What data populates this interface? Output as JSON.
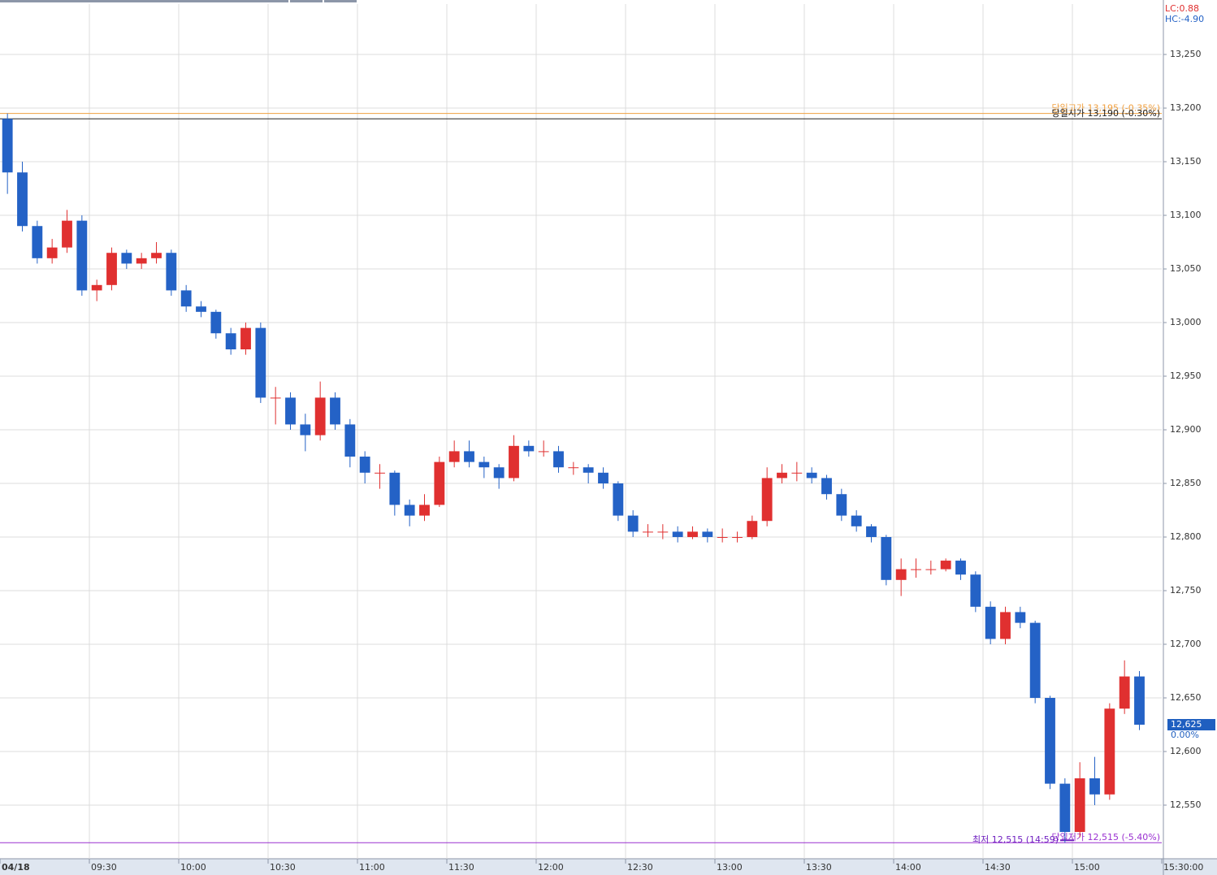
{
  "chart_data": {
    "type": "candlestick",
    "xlim": [
      0,
      390
    ],
    "ylim": [
      12500,
      13297
    ],
    "xticks": [
      {
        "value": 0,
        "label": "04/18"
      },
      {
        "value": 30,
        "label": "09:30"
      },
      {
        "value": 60,
        "label": "10:00"
      },
      {
        "value": 90,
        "label": "10:30"
      },
      {
        "value": 120,
        "label": "11:00"
      },
      {
        "value": 150,
        "label": "11:30"
      },
      {
        "value": 180,
        "label": "12:00"
      },
      {
        "value": 210,
        "label": "12:30"
      },
      {
        "value": 240,
        "label": "13:00"
      },
      {
        "value": 270,
        "label": "13:30"
      },
      {
        "value": 300,
        "label": "14:00"
      },
      {
        "value": 330,
        "label": "14:30"
      },
      {
        "value": 360,
        "label": "15:00"
      },
      {
        "value": 390,
        "label": "15:30:00"
      }
    ],
    "yticks": [
      {
        "value": 12550,
        "label": "12,550"
      },
      {
        "value": 12600,
        "label": "12,600"
      },
      {
        "value": 12650,
        "label": "12,650"
      },
      {
        "value": 12700,
        "label": "12,700"
      },
      {
        "value": 12750,
        "label": "12,750"
      },
      {
        "value": 12800,
        "label": "12,800"
      },
      {
        "value": 12850,
        "label": "12,850"
      },
      {
        "value": 12900,
        "label": "12,900"
      },
      {
        "value": 12950,
        "label": "12,950"
      },
      {
        "value": 13000,
        "label": "13,000"
      },
      {
        "value": 13050,
        "label": "13,050"
      },
      {
        "value": 13100,
        "label": "13,100"
      },
      {
        "value": 13150,
        "label": "13,150"
      },
      {
        "value": 13200,
        "label": "13,200"
      },
      {
        "value": 13250,
        "label": "13,250"
      }
    ],
    "grid": true,
    "up_color": "#e03030",
    "down_color": "#2462c6",
    "lc": "LC:0.88",
    "hc": "HC:-4.90",
    "hlines": [
      {
        "value": 13195,
        "label": "당일고가 13,195 (-0.35%)",
        "color": "#f0a040"
      },
      {
        "value": 13190,
        "label": "당일시가 13,190 (-0.30%)",
        "color": "#202020"
      },
      {
        "value": 12515,
        "label": "당일저가 12,515 (-5.40%)",
        "color": "#9a30d0"
      }
    ],
    "low_note": "최저 12,515 (14:59)",
    "current": {
      "value": 12625,
      "label": "12,625",
      "change": "0.00%"
    },
    "x": [
      0,
      5,
      10,
      15,
      20,
      25,
      30,
      35,
      40,
      45,
      50,
      55,
      60,
      65,
      70,
      75,
      80,
      85,
      90,
      95,
      100,
      105,
      110,
      115,
      120,
      125,
      130,
      135,
      140,
      145,
      150,
      155,
      160,
      165,
      170,
      175,
      180,
      185,
      190,
      195,
      200,
      205,
      210,
      215,
      220,
      225,
      230,
      235,
      240,
      245,
      250,
      255,
      260,
      265,
      270,
      275,
      280,
      285,
      290,
      295,
      300,
      305,
      310,
      315,
      320,
      325,
      330,
      335,
      340,
      345,
      350,
      355,
      360,
      365,
      370,
      375,
      380
    ],
    "candles": [
      [
        13190,
        13195,
        13120,
        13140
      ],
      [
        13140,
        13150,
        13085,
        13090
      ],
      [
        13090,
        13095,
        13055,
        13060
      ],
      [
        13060,
        13078,
        13055,
        13070
      ],
      [
        13070,
        13105,
        13065,
        13095
      ],
      [
        13095,
        13100,
        13025,
        13030
      ],
      [
        13030,
        13040,
        13020,
        13035
      ],
      [
        13035,
        13070,
        13030,
        13065
      ],
      [
        13065,
        13068,
        13050,
        13055
      ],
      [
        13055,
        13065,
        13050,
        13060
      ],
      [
        13060,
        13075,
        13055,
        13065
      ],
      [
        13065,
        13068,
        13025,
        13030
      ],
      [
        13030,
        13035,
        13010,
        13015
      ],
      [
        13015,
        13020,
        13005,
        13010
      ],
      [
        13010,
        13012,
        12985,
        12990
      ],
      [
        12990,
        12995,
        12970,
        12975
      ],
      [
        12975,
        13000,
        12970,
        12995
      ],
      [
        12995,
        13000,
        12925,
        12930
      ],
      [
        12930,
        12940,
        12905,
        12930
      ],
      [
        12930,
        12935,
        12900,
        12905
      ],
      [
        12905,
        12915,
        12880,
        12895
      ],
      [
        12895,
        12945,
        12890,
        12930
      ],
      [
        12930,
        12935,
        12900,
        12905
      ],
      [
        12905,
        12910,
        12865,
        12875
      ],
      [
        12875,
        12880,
        12850,
        12860
      ],
      [
        12860,
        12868,
        12845,
        12860
      ],
      [
        12860,
        12862,
        12820,
        12830
      ],
      [
        12830,
        12835,
        12810,
        12820
      ],
      [
        12820,
        12840,
        12815,
        12830
      ],
      [
        12830,
        12875,
        12828,
        12870
      ],
      [
        12870,
        12890,
        12865,
        12880
      ],
      [
        12880,
        12890,
        12865,
        12870
      ],
      [
        12870,
        12875,
        12855,
        12865
      ],
      [
        12865,
        12868,
        12845,
        12855
      ],
      [
        12855,
        12895,
        12852,
        12885
      ],
      [
        12885,
        12890,
        12875,
        12880
      ],
      [
        12880,
        12890,
        12875,
        12880
      ],
      [
        12880,
        12885,
        12860,
        12865
      ],
      [
        12865,
        12870,
        12858,
        12865
      ],
      [
        12865,
        12868,
        12850,
        12860
      ],
      [
        12860,
        12865,
        12845,
        12850
      ],
      [
        12850,
        12852,
        12815,
        12820
      ],
      [
        12820,
        12825,
        12800,
        12805
      ],
      [
        12805,
        12812,
        12800,
        12805
      ],
      [
        12805,
        12812,
        12798,
        12805
      ],
      [
        12805,
        12810,
        12795,
        12800
      ],
      [
        12800,
        12810,
        12798,
        12805
      ],
      [
        12805,
        12808,
        12795,
        12800
      ],
      [
        12800,
        12808,
        12795,
        12800
      ],
      [
        12800,
        12805,
        12795,
        12800
      ],
      [
        12800,
        12820,
        12798,
        12815
      ],
      [
        12815,
        12865,
        12810,
        12855
      ],
      [
        12855,
        12868,
        12850,
        12860
      ],
      [
        12860,
        12870,
        12852,
        12860
      ],
      [
        12860,
        12865,
        12850,
        12855
      ],
      [
        12855,
        12858,
        12835,
        12840
      ],
      [
        12840,
        12845,
        12815,
        12820
      ],
      [
        12820,
        12825,
        12805,
        12810
      ],
      [
        12810,
        12812,
        12795,
        12800
      ],
      [
        12800,
        12802,
        12755,
        12760
      ],
      [
        12760,
        12780,
        12745,
        12770
      ],
      [
        12770,
        12780,
        12762,
        12770
      ],
      [
        12770,
        12778,
        12765,
        12770
      ],
      [
        12770,
        12780,
        12768,
        12778
      ],
      [
        12778,
        12780,
        12760,
        12765
      ],
      [
        12765,
        12768,
        12730,
        12735
      ],
      [
        12735,
        12740,
        12700,
        12705
      ],
      [
        12705,
        12735,
        12700,
        12730
      ],
      [
        12730,
        12735,
        12715,
        12720
      ],
      [
        12720,
        12722,
        12645,
        12650
      ],
      [
        12650,
        12652,
        12565,
        12570
      ],
      [
        12570,
        12575,
        12515,
        12525
      ],
      [
        12525,
        12590,
        12520,
        12575
      ],
      [
        12575,
        12595,
        12550,
        12560
      ],
      [
        12560,
        12645,
        12555,
        12640
      ],
      [
        12640,
        12685,
        12635,
        12670
      ],
      [
        12670,
        12675,
        12620,
        12625
      ]
    ]
  }
}
